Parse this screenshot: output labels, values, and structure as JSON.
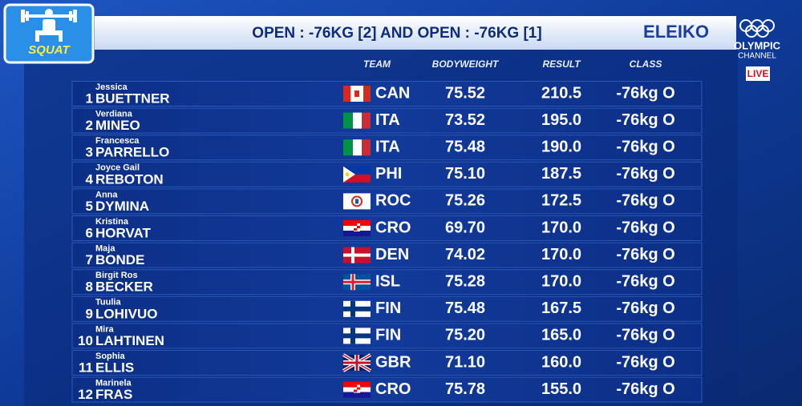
{
  "header": {
    "event": "SQUAT",
    "title": "OPEN : -76KG [2] AND OPEN : -76KG [1]",
    "brand": "ELEIKO",
    "channel_top": "OLYMPIC",
    "channel_bottom": "CHANNEL",
    "live": "LIVE"
  },
  "table": {
    "columns": [
      "TEAM",
      "BODYWEIGHT",
      "RESULT",
      "CLASS"
    ],
    "rows": [
      {
        "rank": "1",
        "first_name": "Jessica",
        "last_name": "BUETTNER",
        "team": "CAN",
        "bodyweight": "75.52",
        "result": "210.5",
        "class": "-76kg O"
      },
      {
        "rank": "2",
        "first_name": "Verdiana",
        "last_name": "MINEO",
        "team": "ITA",
        "bodyweight": "73.52",
        "result": "195.0",
        "class": "-76kg O"
      },
      {
        "rank": "3",
        "first_name": "Francesca",
        "last_name": "PARRELLO",
        "team": "ITA",
        "bodyweight": "75.48",
        "result": "190.0",
        "class": "-76kg O"
      },
      {
        "rank": "4",
        "first_name": "Joyce Gail",
        "last_name": "REBOTON",
        "team": "PHI",
        "bodyweight": "75.10",
        "result": "187.5",
        "class": "-76kg O"
      },
      {
        "rank": "5",
        "first_name": "Anna",
        "last_name": "DYMINA",
        "team": "ROC",
        "bodyweight": "75.26",
        "result": "172.5",
        "class": "-76kg O"
      },
      {
        "rank": "6",
        "first_name": "Kristina",
        "last_name": "HORVAT",
        "team": "CRO",
        "bodyweight": "69.70",
        "result": "170.0",
        "class": "-76kg O"
      },
      {
        "rank": "7",
        "first_name": "Maja",
        "last_name": "BONDE",
        "team": "DEN",
        "bodyweight": "74.02",
        "result": "170.0",
        "class": "-76kg O"
      },
      {
        "rank": "8",
        "first_name": "Birgit Ros",
        "last_name": "BECKER",
        "team": "ISL",
        "bodyweight": "75.28",
        "result": "170.0",
        "class": "-76kg O"
      },
      {
        "rank": "9",
        "first_name": "Tuulia",
        "last_name": "LOHIVUO",
        "team": "FIN",
        "bodyweight": "75.48",
        "result": "167.5",
        "class": "-76kg O"
      },
      {
        "rank": "10",
        "first_name": "Mira",
        "last_name": "LAHTINEN",
        "team": "FIN",
        "bodyweight": "75.20",
        "result": "165.0",
        "class": "-76kg O"
      },
      {
        "rank": "11",
        "first_name": "Sophia",
        "last_name": "ELLIS",
        "team": "GBR",
        "bodyweight": "71.10",
        "result": "160.0",
        "class": "-76kg O"
      },
      {
        "rank": "12",
        "first_name": "Marinela",
        "last_name": "FRAS",
        "team": "CRO",
        "bodyweight": "75.78",
        "result": "155.0",
        "class": "-76kg O"
      }
    ]
  }
}
